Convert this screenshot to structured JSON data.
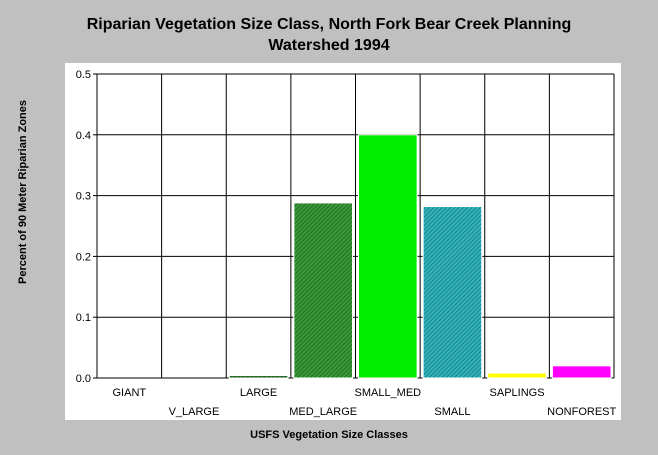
{
  "chart_data": {
    "type": "bar",
    "title_lines": [
      "Riparian Vegetation Size Class, North Fork Bear Creek Planning",
      "Watershed 1994"
    ],
    "xlabel": "USFS Vegetation Size Classes",
    "ylabel": "Percent of 90 Meter Riparian Zones",
    "categories": [
      "GIANT",
      "V_LARGE",
      "LARGE",
      "MED_LARGE",
      "SMALL_MED",
      "SMALL",
      "SAPLINGS",
      "NONFOREST"
    ],
    "values": [
      0,
      0,
      0.004,
      0.288,
      0.4,
      0.282,
      0.008,
      0.02
    ],
    "colors": [
      "#000000",
      "#000000",
      "#1a7a1a",
      "#2e8b2e",
      "#00ee00",
      "#2aa8b0",
      "#ffff00",
      "#ff00ff"
    ],
    "hatched": [
      false,
      false,
      true,
      true,
      false,
      true,
      false,
      false
    ],
    "ylim": [
      0,
      0.5
    ],
    "yticks": [
      "0.0",
      "0.1",
      "0.2",
      "0.3",
      "0.4",
      "0.5"
    ],
    "grid": true
  }
}
